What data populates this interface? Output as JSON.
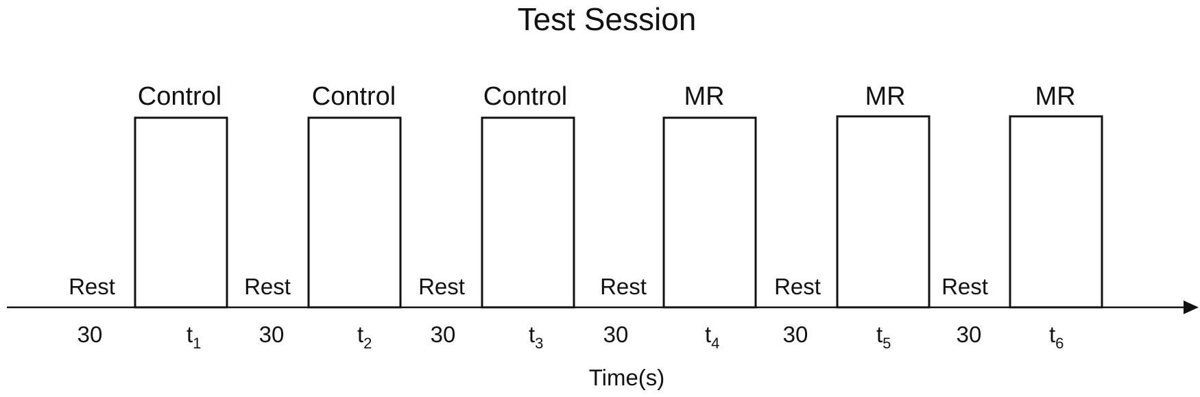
{
  "diagram": {
    "title": "Test Session",
    "axis_label": "Time(s)",
    "blocks": [
      {
        "label": "Control",
        "duration_main": "t",
        "duration_sub": "1"
      },
      {
        "label": "Control",
        "duration_main": "t",
        "duration_sub": "2"
      },
      {
        "label": "Control",
        "duration_main": "t",
        "duration_sub": "3"
      },
      {
        "label": "MR",
        "duration_main": "t",
        "duration_sub": "4"
      },
      {
        "label": "MR",
        "duration_main": "t",
        "duration_sub": "5"
      },
      {
        "label": "MR",
        "duration_main": "t",
        "duration_sub": "6"
      }
    ],
    "rests": [
      {
        "label": "Rest",
        "duration": "30"
      },
      {
        "label": "Rest",
        "duration": "30"
      },
      {
        "label": "Rest",
        "duration": "30"
      },
      {
        "label": "Rest",
        "duration": "30"
      },
      {
        "label": "Rest",
        "duration": "30"
      },
      {
        "label": "Rest",
        "duration": "30"
      }
    ]
  }
}
